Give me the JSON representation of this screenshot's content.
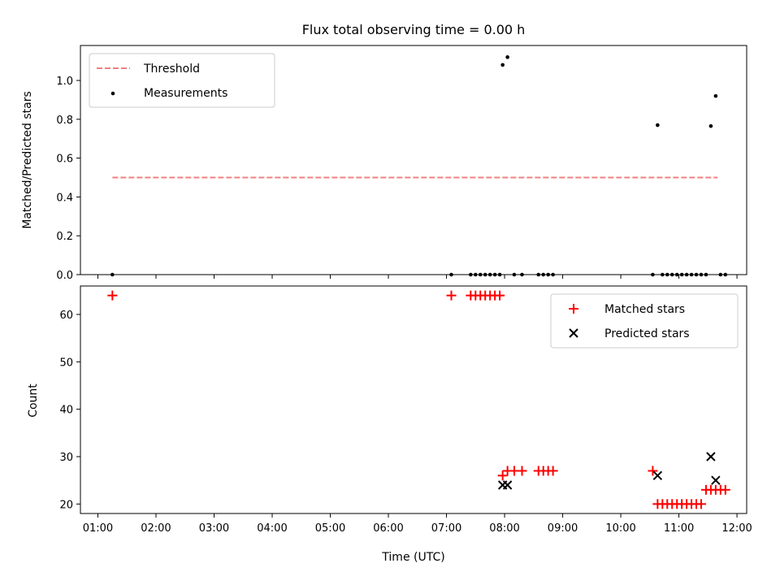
{
  "chart_data": {
    "title": "Flux total observing time = 0.00 h",
    "xlabel": "Time (UTC)",
    "x_ticks": [
      "01:00",
      "02:00",
      "03:00",
      "04:00",
      "05:00",
      "06:00",
      "07:00",
      "08:00",
      "09:00",
      "10:00",
      "11:00",
      "12:00"
    ],
    "xlim": [
      "00:42",
      "12:10"
    ],
    "panels": [
      {
        "type": "scatter",
        "ylabel": "Matched/Predicted stars",
        "ylim": [
          0,
          1.18
        ],
        "y_ticks": [
          "0.0",
          "0.2",
          "0.4",
          "0.6",
          "0.8",
          "1.0"
        ],
        "legend_position": "top-left",
        "threshold": {
          "name": "Threshold",
          "value": 0.5,
          "x_range": [
            "01:15",
            "11:40"
          ],
          "color": "#f08080"
        },
        "series": [
          {
            "name": "Measurements",
            "color": "#000000",
            "points": [
              [
                "01:15",
                0.0
              ],
              [
                "07:05",
                0.0
              ],
              [
                "07:25",
                0.0
              ],
              [
                "07:30",
                0.0
              ],
              [
                "07:35",
                0.0
              ],
              [
                "07:40",
                0.0
              ],
              [
                "07:45",
                0.0
              ],
              [
                "07:50",
                0.0
              ],
              [
                "07:55",
                0.0
              ],
              [
                "07:58",
                1.08
              ],
              [
                "08:03",
                1.12
              ],
              [
                "08:10",
                0.0
              ],
              [
                "08:18",
                0.0
              ],
              [
                "08:35",
                0.0
              ],
              [
                "08:40",
                0.0
              ],
              [
                "08:45",
                0.0
              ],
              [
                "08:50",
                0.0
              ],
              [
                "10:33",
                0.0
              ],
              [
                "10:38",
                0.77
              ],
              [
                "10:43",
                0.0
              ],
              [
                "10:48",
                0.0
              ],
              [
                "10:53",
                0.0
              ],
              [
                "10:58",
                0.0
              ],
              [
                "11:03",
                0.0
              ],
              [
                "11:08",
                0.0
              ],
              [
                "11:13",
                0.0
              ],
              [
                "11:18",
                0.0
              ],
              [
                "11:23",
                0.0
              ],
              [
                "11:28",
                0.0
              ],
              [
                "11:33",
                0.765
              ],
              [
                "11:38",
                0.92
              ],
              [
                "11:43",
                0.0
              ],
              [
                "11:48",
                0.0
              ]
            ]
          }
        ]
      },
      {
        "type": "scatter",
        "ylabel": "Count",
        "ylim": [
          18,
          66
        ],
        "y_ticks": [
          "20",
          "30",
          "40",
          "50",
          "60"
        ],
        "legend_position": "top-right",
        "series": [
          {
            "name": "Matched stars",
            "marker": "plus",
            "color": "#ff0000",
            "points": [
              [
                "01:15",
                64
              ],
              [
                "07:05",
                64
              ],
              [
                "07:25",
                64
              ],
              [
                "07:30",
                64
              ],
              [
                "07:35",
                64
              ],
              [
                "07:40",
                64
              ],
              [
                "07:45",
                64
              ],
              [
                "07:50",
                64
              ],
              [
                "07:55",
                64
              ],
              [
                "07:58",
                26
              ],
              [
                "08:03",
                27
              ],
              [
                "08:10",
                27
              ],
              [
                "08:18",
                27
              ],
              [
                "08:35",
                27
              ],
              [
                "08:40",
                27
              ],
              [
                "08:45",
                27
              ],
              [
                "08:50",
                27
              ],
              [
                "10:33",
                27
              ],
              [
                "10:38",
                20
              ],
              [
                "10:43",
                20
              ],
              [
                "10:48",
                20
              ],
              [
                "10:53",
                20
              ],
              [
                "10:58",
                20
              ],
              [
                "11:03",
                20
              ],
              [
                "11:08",
                20
              ],
              [
                "11:13",
                20
              ],
              [
                "11:18",
                20
              ],
              [
                "11:23",
                20
              ],
              [
                "11:28",
                23
              ],
              [
                "11:33",
                23
              ],
              [
                "11:38",
                23
              ],
              [
                "11:43",
                23
              ],
              [
                "11:48",
                23
              ]
            ]
          },
          {
            "name": "Predicted stars",
            "marker": "x",
            "color": "#000000",
            "points": [
              [
                "07:58",
                24
              ],
              [
                "08:03",
                24
              ],
              [
                "10:38",
                26
              ],
              [
                "11:33",
                30
              ],
              [
                "11:38",
                25
              ]
            ]
          }
        ]
      }
    ]
  }
}
